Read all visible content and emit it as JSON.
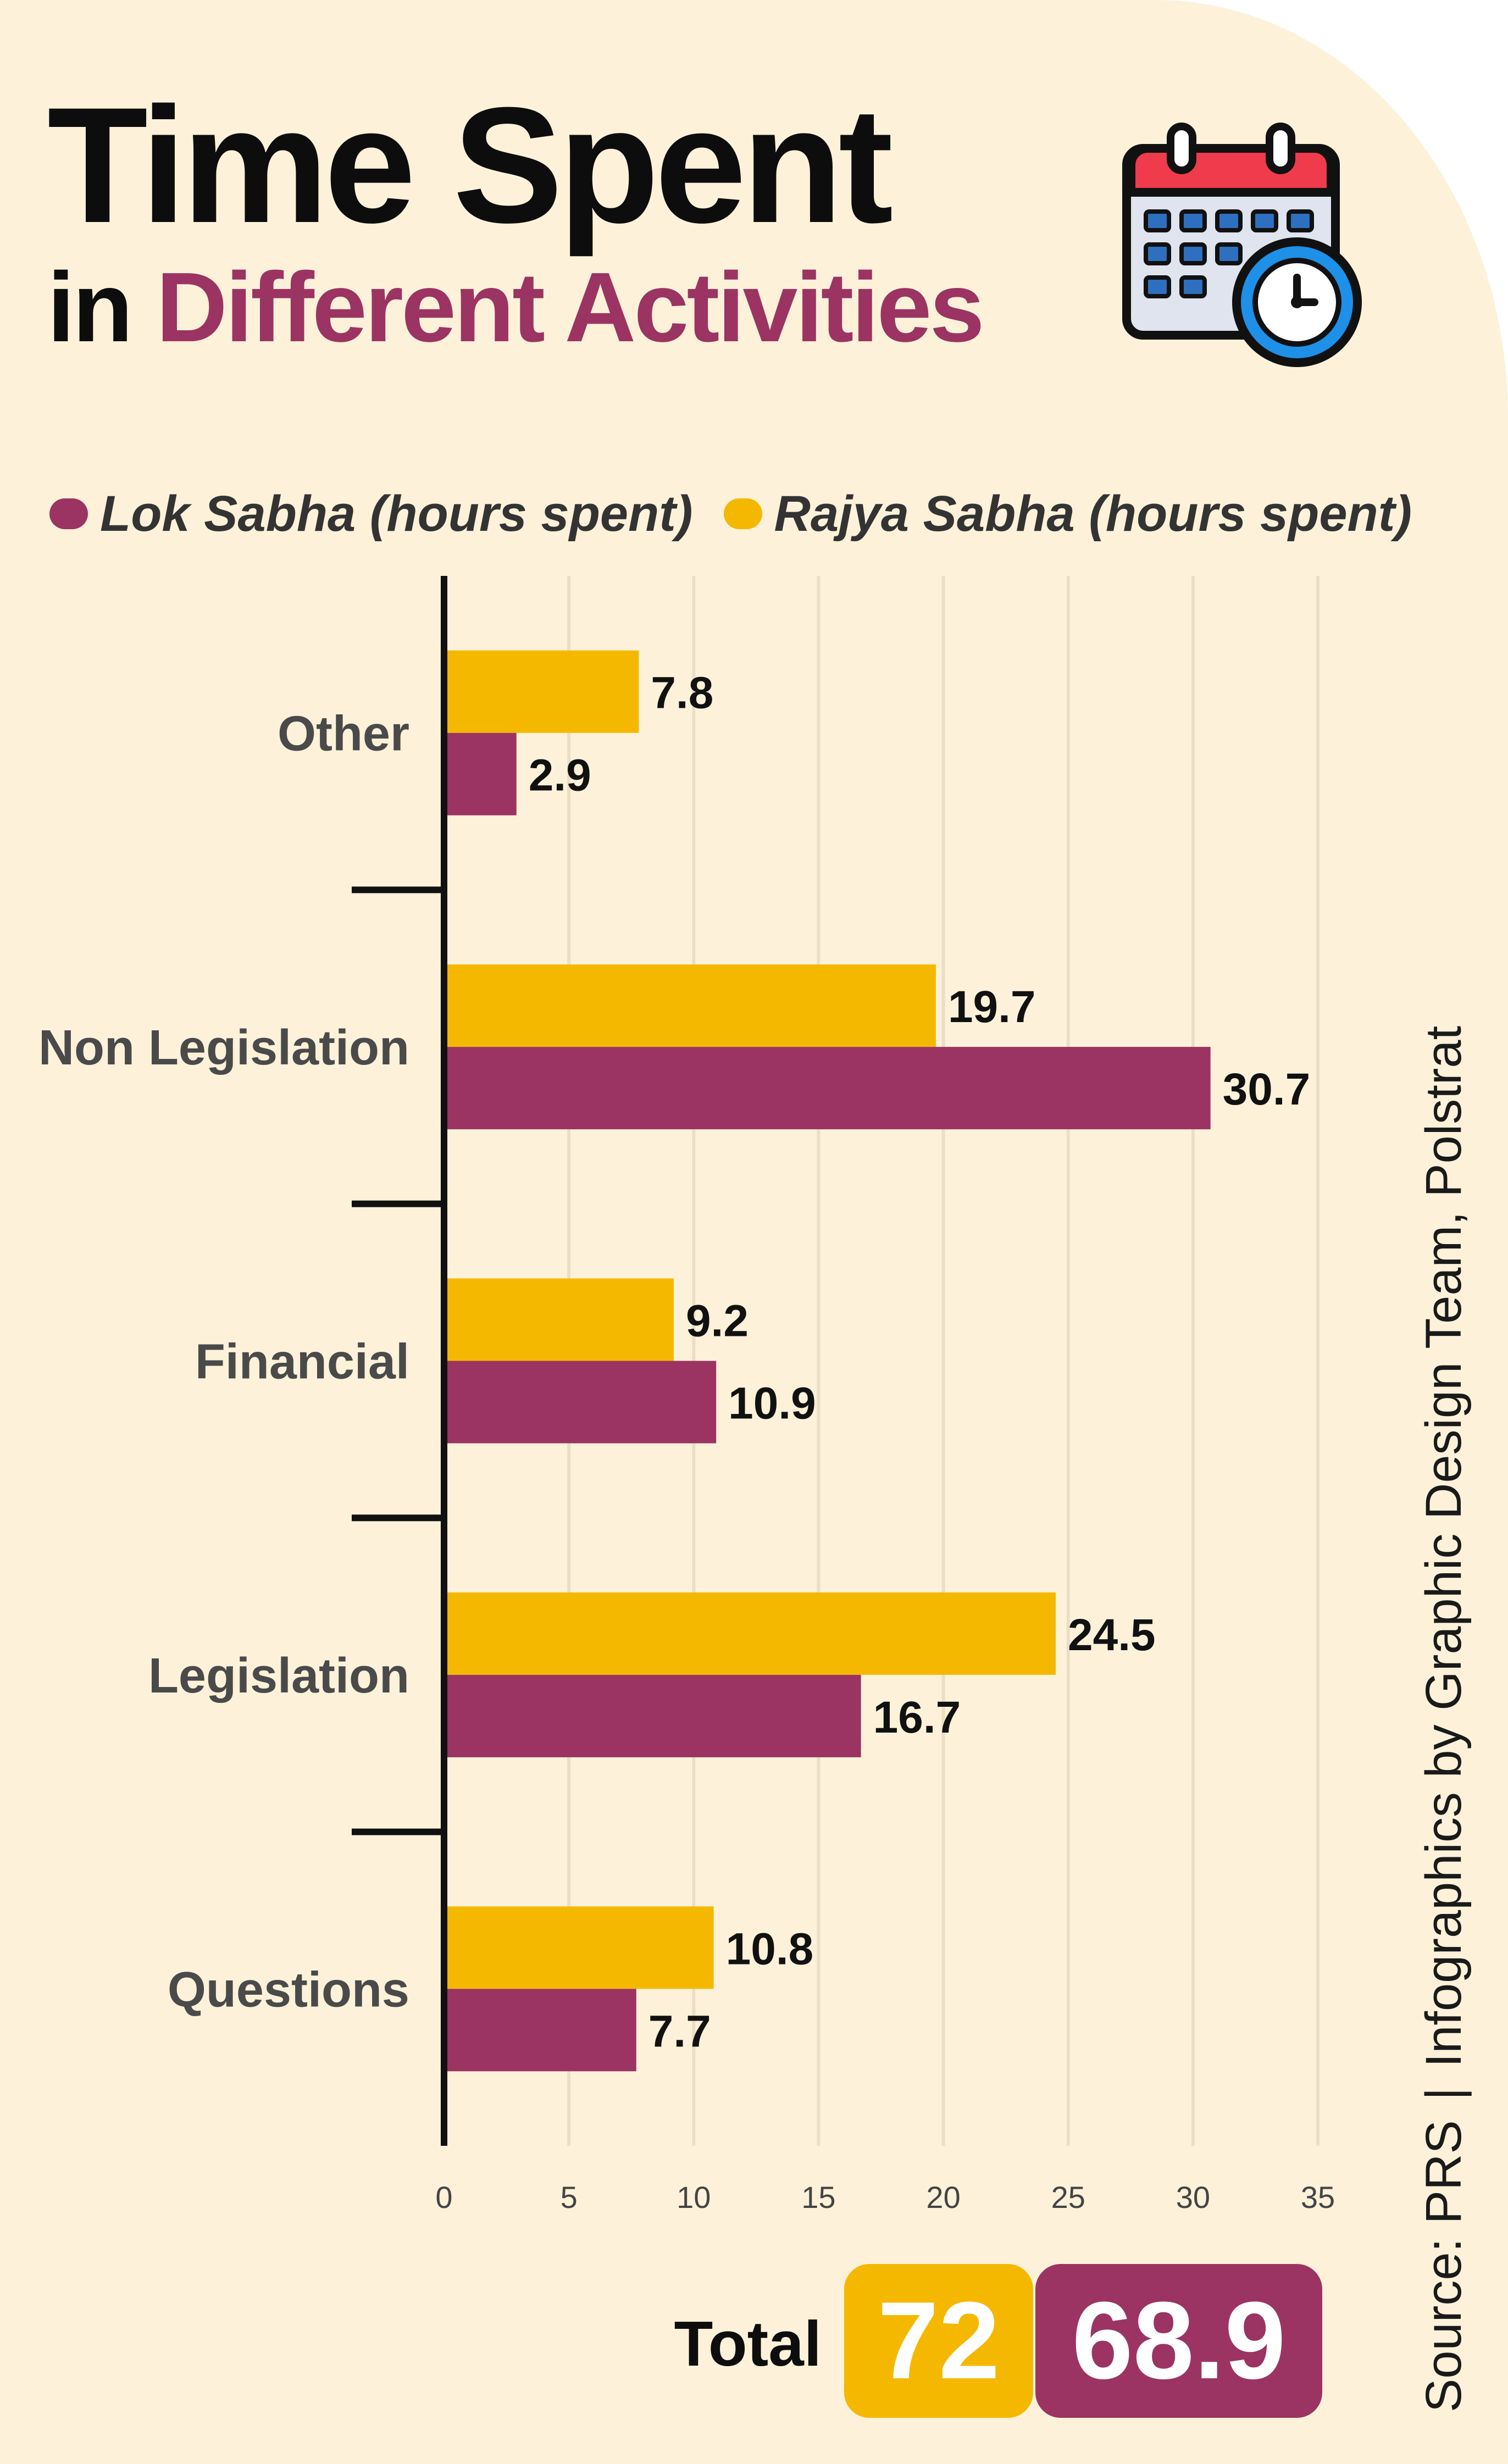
{
  "title": "Time Spent",
  "subtitle_prefix": "in",
  "subtitle_accent": "Different Activities",
  "legend": [
    {
      "label": "Lok Sabha (hours spent)",
      "color": "#9b3462"
    },
    {
      "label": "Rajya Sabha (hours spent)",
      "color": "#f5b800"
    }
  ],
  "chart_data": {
    "type": "bar",
    "orientation": "horizontal",
    "categories": [
      "Other",
      "Non Legislation",
      "Financial",
      "Legislation",
      "Questions"
    ],
    "series": [
      {
        "name": "Rajya Sabha (hours spent)",
        "color": "#f5b800",
        "values": [
          7.8,
          19.7,
          9.2,
          24.5,
          10.8
        ]
      },
      {
        "name": "Lok Sabha (hours spent)",
        "color": "#9b3462",
        "values": [
          2.9,
          30.7,
          10.9,
          16.7,
          7.7
        ]
      }
    ],
    "xlim": [
      0,
      35
    ],
    "xticks": [
      "0",
      "5",
      "10",
      "15",
      "20",
      "25",
      "30",
      "35"
    ],
    "grid": true,
    "legend_position": "top"
  },
  "totals": {
    "label": "Total",
    "rajya_sabha": "72",
    "lok_sabha": "68.9"
  },
  "credit": {
    "source": "Source: PRS",
    "design": "Infographics by Graphic Design Team, Polstrat"
  }
}
